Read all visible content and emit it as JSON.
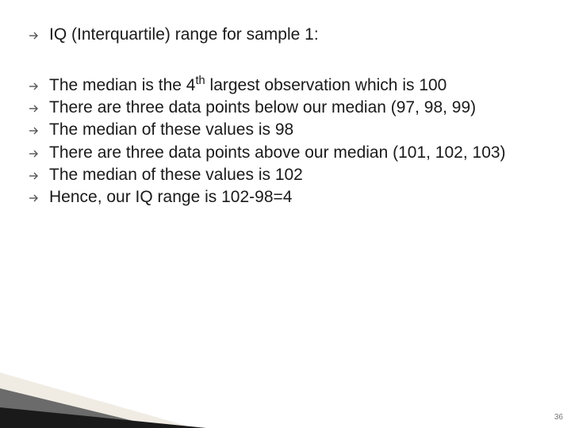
{
  "bullets": [
    {
      "text": "IQ (Interquartile) range for sample 1:",
      "spaced": true
    },
    {
      "text": "The median is the 4",
      "sup": "th",
      "tail": " largest observation which is 100"
    },
    {
      "text": "There are three data points below our median (97, 98, 99)"
    },
    {
      "text": "The median of these values is 98"
    },
    {
      "text": "There are three data points above our median (101, 102, 103)"
    },
    {
      "text": "The median of these values is 102"
    },
    {
      "text": "Hence, our IQ range is 102-98=4"
    }
  ],
  "page_number": "36",
  "colors": {
    "text": "#1a1a1a",
    "arrow": "#555555",
    "background": "#ffffff",
    "wedge_dark": "#1a1a1a",
    "wedge_mid": "#6b6b6b",
    "wedge_light": "#f0ece4"
  },
  "typography": {
    "body_fontsize_pt": 16,
    "pagenum_fontsize_pt": 8
  }
}
